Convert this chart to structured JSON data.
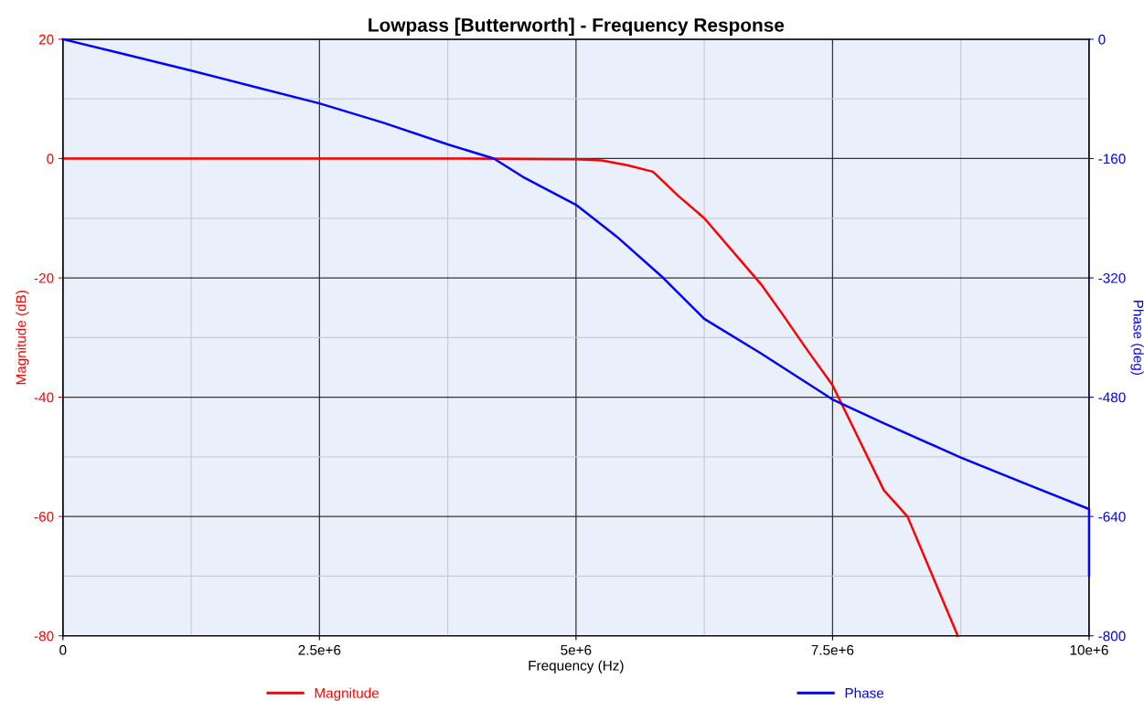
{
  "chart_data": {
    "type": "line",
    "title": "Lowpass [Butterworth] - Frequency Response",
    "xlabel": "Frequency (Hz)",
    "ylabel": "Magnitude (dB)",
    "y2label": "Phase (deg)",
    "xlim": [
      0,
      10000000
    ],
    "xticks": [
      {
        "value": 0,
        "label": "0"
      },
      {
        "value": 2500000,
        "label": "2.5e+6"
      },
      {
        "value": 5000000,
        "label": "5e+6"
      },
      {
        "value": 7500000,
        "label": "7.5e+6"
      },
      {
        "value": 10000000,
        "label": "10e+6"
      }
    ],
    "ylim": [
      -80,
      20
    ],
    "yticks": [
      -80,
      -60,
      -40,
      -20,
      0,
      20
    ],
    "y2lim": [
      -800,
      0
    ],
    "y2ticks": [
      -800,
      -640,
      -480,
      -320,
      -160,
      0
    ],
    "grid": true,
    "legend": "bottom",
    "line_style": "solid",
    "series": [
      {
        "name": "Magnitude",
        "color": "#ff0000",
        "x": [
          0,
          1250000,
          2500000,
          3750000,
          5000000,
          5250000,
          5500000,
          5750000,
          6000000,
          6250000,
          6800000,
          7000000,
          7250000,
          7500000,
          8000000,
          8230000,
          8720000
        ],
        "values": [
          0,
          0,
          0,
          0,
          -0.1,
          -0.3,
          -1.1,
          -2.2,
          -6.3,
          -10,
          -21,
          -25.8,
          -32,
          -38,
          -55.6,
          -60,
          -80
        ]
      },
      {
        "name": "Phase",
        "color": "#0000ff",
        "axis": "y2",
        "x": [
          0,
          625000,
          1250000,
          1875000,
          2500000,
          3125000,
          3750000,
          4200000,
          4500000,
          5000000,
          5400000,
          5850000,
          6250000,
          6800000,
          7500000,
          8000000,
          8750000,
          9400000,
          10000000,
          10000000
        ],
        "values": [
          0,
          -21,
          -42,
          -64,
          -86,
          -112,
          -141,
          -160,
          -186,
          -222,
          -265,
          -320,
          -375,
          -421,
          -483,
          -515,
          -561,
          -597,
          -630,
          -719
        ]
      }
    ]
  }
}
